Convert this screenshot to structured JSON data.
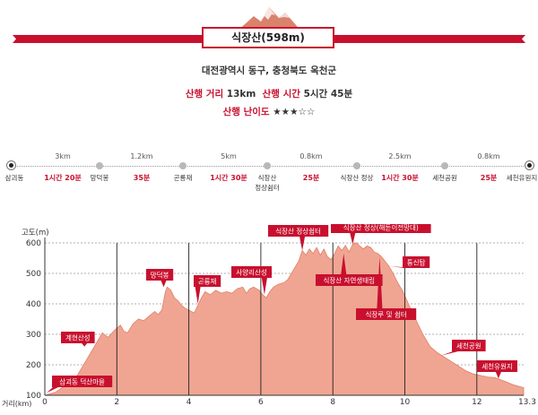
{
  "header": {
    "title": "식장산(598m)",
    "region": "대전광역시 동구, 충청북도 옥천군",
    "distance_label": "산행 거리",
    "distance_value": "13km",
    "time_label": "산행 시간",
    "time_value": "5시간 45분",
    "difficulty_label": "산행 난이도",
    "difficulty_stars": "★★★☆☆"
  },
  "route": {
    "stops": [
      {
        "name": "삼괴동",
        "end": true
      },
      {
        "name": "망덕봉"
      },
      {
        "name": "곤룡재"
      },
      {
        "name": "식장산\n정상쉼터"
      },
      {
        "name": "식장산 정상"
      },
      {
        "name": "세천공원"
      },
      {
        "name": "세천유원지",
        "end": true
      }
    ],
    "segments": [
      {
        "distance": "3km",
        "time": "1시간 20분"
      },
      {
        "distance": "1.2km",
        "time": "35분"
      },
      {
        "distance": "5km",
        "time": "1시간 30분"
      },
      {
        "distance": "0.8km",
        "time": "25분"
      },
      {
        "distance": "2.5km",
        "time": "1시간 30분"
      },
      {
        "distance": "0.8km",
        "time": "25분"
      }
    ]
  },
  "colors": {
    "accent": "#c8102e",
    "fill": "#f0a592",
    "grid": "#222222"
  },
  "chart_data": {
    "type": "area",
    "ylabel": "고도(m)",
    "xlabel": "거리(km)",
    "xlim": [
      0,
      13.3
    ],
    "ylim": [
      100,
      600
    ],
    "x_ticks": [
      "0",
      "2",
      "4",
      "6",
      "8",
      "10",
      "12",
      "13.3"
    ],
    "y_ticks": [
      "100",
      "200",
      "300",
      "400",
      "500",
      "600"
    ],
    "profile": [
      [
        0,
        100
      ],
      [
        0.3,
        110
      ],
      [
        0.6,
        135
      ],
      [
        0.9,
        165
      ],
      [
        1.15,
        215
      ],
      [
        1.4,
        265
      ],
      [
        1.6,
        305
      ],
      [
        1.75,
        290
      ],
      [
        1.95,
        315
      ],
      [
        2.1,
        330
      ],
      [
        2.2,
        310
      ],
      [
        2.3,
        305
      ],
      [
        2.45,
        335
      ],
      [
        2.6,
        350
      ],
      [
        2.75,
        345
      ],
      [
        2.9,
        360
      ],
      [
        3.05,
        375
      ],
      [
        3.15,
        365
      ],
      [
        3.25,
        380
      ],
      [
        3.3,
        410
      ],
      [
        3.35,
        440
      ],
      [
        3.4,
        455
      ],
      [
        3.5,
        445
      ],
      [
        3.6,
        420
      ],
      [
        3.7,
        410
      ],
      [
        3.8,
        395
      ],
      [
        3.9,
        385
      ],
      [
        4.0,
        380
      ],
      [
        4.15,
        370
      ],
      [
        4.25,
        395
      ],
      [
        4.35,
        420
      ],
      [
        4.45,
        440
      ],
      [
        4.6,
        430
      ],
      [
        4.75,
        445
      ],
      [
        4.9,
        435
      ],
      [
        5.05,
        440
      ],
      [
        5.2,
        435
      ],
      [
        5.35,
        450
      ],
      [
        5.5,
        455
      ],
      [
        5.6,
        435
      ],
      [
        5.7,
        450
      ],
      [
        5.8,
        455
      ],
      [
        5.95,
        445
      ],
      [
        6.05,
        430
      ],
      [
        6.15,
        420
      ],
      [
        6.25,
        440
      ],
      [
        6.35,
        455
      ],
      [
        6.5,
        465
      ],
      [
        6.65,
        470
      ],
      [
        6.75,
        480
      ],
      [
        6.85,
        500
      ],
      [
        6.95,
        520
      ],
      [
        7.05,
        540
      ],
      [
        7.15,
        575
      ],
      [
        7.25,
        560
      ],
      [
        7.35,
        580
      ],
      [
        7.45,
        565
      ],
      [
        7.55,
        585
      ],
      [
        7.65,
        560
      ],
      [
        7.75,
        580
      ],
      [
        7.85,
        555
      ],
      [
        7.95,
        545
      ],
      [
        8.05,
        565
      ],
      [
        8.15,
        590
      ],
      [
        8.25,
        575
      ],
      [
        8.35,
        592
      ],
      [
        8.45,
        570
      ],
      [
        8.55,
        595
      ],
      [
        8.65,
        600
      ],
      [
        8.75,
        590
      ],
      [
        8.85,
        580
      ],
      [
        8.95,
        590
      ],
      [
        9.05,
        585
      ],
      [
        9.15,
        570
      ],
      [
        9.25,
        565
      ],
      [
        9.35,
        555
      ],
      [
        9.45,
        540
      ],
      [
        9.55,
        525
      ],
      [
        9.65,
        505
      ],
      [
        9.8,
        470
      ],
      [
        9.95,
        440
      ],
      [
        10.1,
        400
      ],
      [
        10.3,
        350
      ],
      [
        10.5,
        300
      ],
      [
        10.7,
        260
      ],
      [
        10.9,
        240
      ],
      [
        11.1,
        225
      ],
      [
        11.3,
        210
      ],
      [
        11.5,
        195
      ],
      [
        11.7,
        180
      ],
      [
        11.9,
        170
      ],
      [
        12.1,
        165
      ],
      [
        12.3,
        160
      ],
      [
        12.5,
        158
      ],
      [
        12.8,
        145
      ],
      [
        13.0,
        135
      ],
      [
        13.3,
        125
      ]
    ],
    "annotations": [
      {
        "label": "삼괴동 덕산마을",
        "x": 0.05,
        "y": 108
      },
      {
        "label": "계현산성",
        "x": 1.1,
        "y": 260
      },
      {
        "label": "망덕봉",
        "x": 3.3,
        "y": 455
      },
      {
        "label": "곤룡재",
        "x": 4.25,
        "y": 400
      },
      {
        "label": "사양리산성",
        "x": 6.1,
        "y": 430
      },
      {
        "label": "식장산 정상쉼터",
        "x": 7.15,
        "y": 575
      },
      {
        "label": "식장산 정상(해돋이전망대)",
        "x": 8.55,
        "y": 595
      },
      {
        "label": "식장산 자연생태림",
        "x": 8.3,
        "y": 565
      },
      {
        "label": "통신탑",
        "x": 9.55,
        "y": 525
      },
      {
        "label": "식장루 및 쉼터",
        "x": 9.3,
        "y": 555
      },
      {
        "label": "세천공원",
        "x": 11.0,
        "y": 230
      },
      {
        "label": "세천유원지",
        "x": 12.6,
        "y": 155
      }
    ]
  }
}
